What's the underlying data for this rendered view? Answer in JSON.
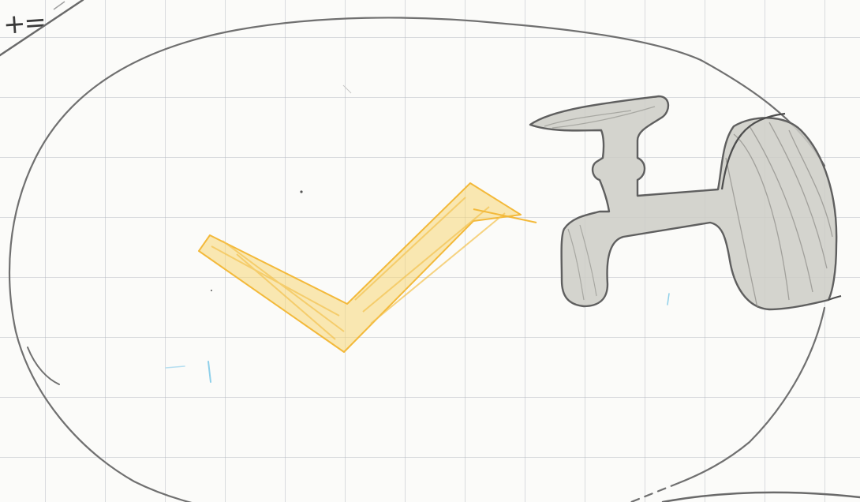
{
  "sheet": {
    "paper": "grid-paper",
    "corner_text": "+="
  },
  "drawing": {
    "colors": {
      "paper": "#fbfbf9",
      "grid": "#b4b8c0",
      "outline": "#707070",
      "checkmark_fill": "#f8d777",
      "checkmark_stroke": "#f3b93a",
      "faucet_fill": "#cdccc7",
      "faucet_stroke": "#5f5f5f",
      "blue_mark": "#8fd0ea"
    },
    "icons": [
      "oval-outline",
      "check-mark-icon",
      "faucet-icon"
    ]
  }
}
